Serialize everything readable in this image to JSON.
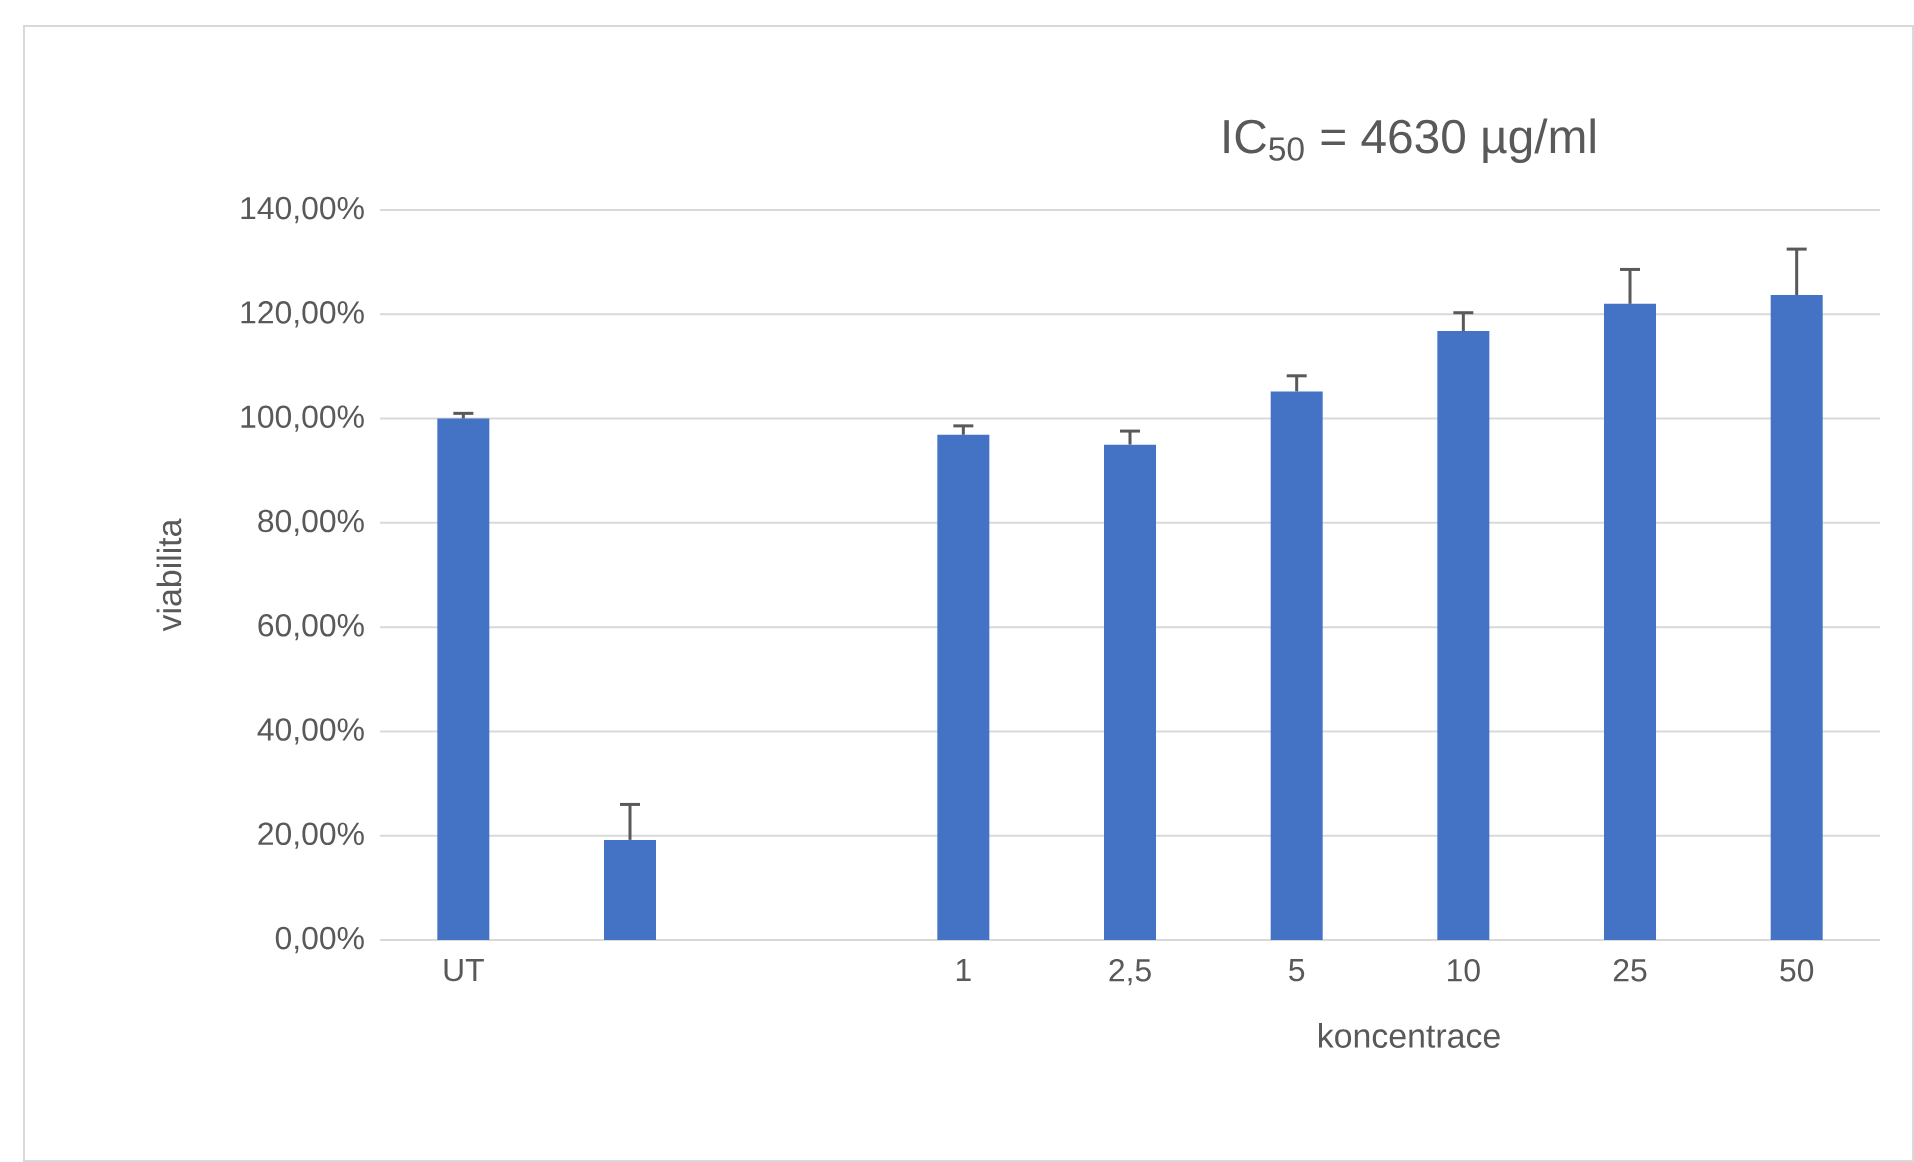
{
  "chart_data": {
    "type": "bar",
    "title": "IC$_{50}$ = 4630 µg/ml",
    "xlabel": "koncentrace",
    "ylabel": "viabilita",
    "categories": [
      "UT",
      null,
      null,
      "1",
      "2,5",
      "5",
      "10",
      "25",
      "50"
    ],
    "values": [
      100,
      19.2,
      null,
      96.9,
      95.0,
      105.2,
      116.8,
      122.0,
      123.7
    ],
    "errors": [
      1,
      6.8,
      null,
      1.7,
      2.6,
      3.0,
      3.5,
      6.6,
      8.8
    ],
    "color": "#4472c4",
    "ylim": [
      0,
      140
    ],
    "yticks": [
      {
        "value": 0,
        "label": "0,00%"
      },
      {
        "value": 20,
        "label": "20,00%"
      },
      {
        "value": 40,
        "label": "40,00%"
      },
      {
        "value": 60,
        "label": "60,00%"
      },
      {
        "value": 80,
        "label": "80,00%"
      },
      {
        "value": 100,
        "label": "100,00%"
      },
      {
        "value": 120,
        "label": "120,00%"
      },
      {
        "value": 140,
        "label": "140,00%"
      }
    ],
    "grid": "y"
  }
}
